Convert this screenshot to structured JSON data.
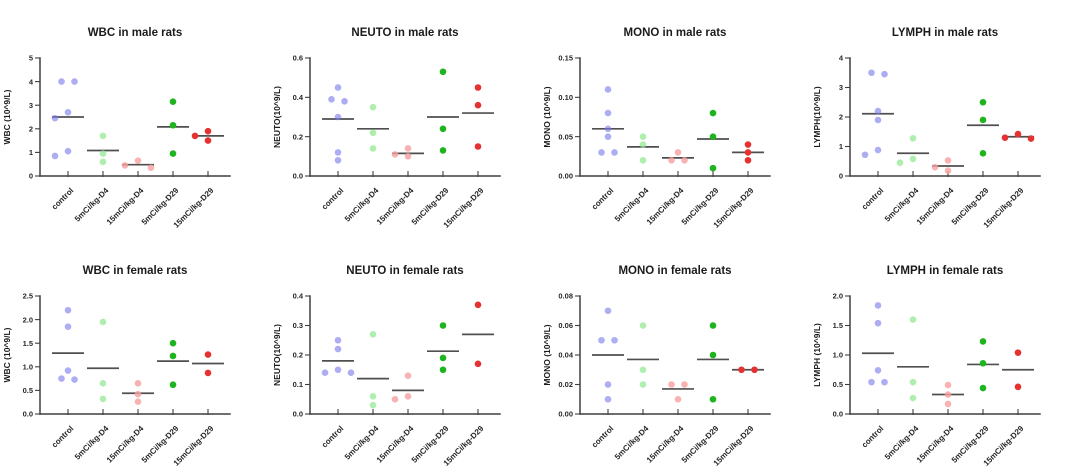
{
  "page": {
    "background": "#ffffff",
    "figure_type": "dot-plot-grid",
    "rows": 2,
    "cols": 4
  },
  "categories": [
    "control",
    "5mCi/kg-D4",
    "15mCi/kg-D4",
    "5mCi/kg-D29",
    "15mCi/kg-D29"
  ],
  "group_styles": [
    {
      "category": "control",
      "color": "#7b7beb",
      "opacity": 0.62
    },
    {
      "category": "5mCi/kg-D4",
      "color": "#90e890",
      "opacity": 0.72
    },
    {
      "category": "15mCi/kg-D4",
      "color": "#f79f9f",
      "opacity": 0.8
    },
    {
      "category": "5mCi/kg-D29",
      "color": "#1eb41e",
      "opacity": 1
    },
    {
      "category": "15mCi/kg-D29",
      "color": "#e63131",
      "opacity": 1
    }
  ],
  "mean_line_color": "#4f4f4f",
  "chart_data": [
    {
      "type": "scatter",
      "title": "WBC in male rats",
      "ylabel": "WBC (10^9/L)",
      "ylim": [
        0,
        5
      ],
      "yticks": [
        0,
        1,
        2,
        3,
        4,
        5
      ],
      "ytick_labels": [
        "0",
        "1",
        "2",
        "3",
        "4",
        "5"
      ],
      "groups": [
        {
          "category": "control",
          "values": [
            4.0,
            4.0,
            2.7,
            2.45,
            1.05,
            0.85
          ],
          "mean": 2.5
        },
        {
          "category": "5mCi/kg-D4",
          "values": [
            1.7,
            0.95,
            0.6
          ],
          "mean": 1.08
        },
        {
          "category": "15mCi/kg-D4",
          "values": [
            0.65,
            0.45,
            0.35
          ],
          "mean": 0.48
        },
        {
          "category": "5mCi/kg-D29",
          "values": [
            3.15,
            2.15,
            0.95
          ],
          "mean": 2.08
        },
        {
          "category": "15mCi/kg-D29",
          "values": [
            1.9,
            1.7,
            1.5
          ],
          "mean": 1.7
        }
      ]
    },
    {
      "type": "scatter",
      "title": "NEUTO in male rats",
      "ylabel": "NEUTO(10^9/L)",
      "ylim": [
        0,
        0.6
      ],
      "yticks": [
        0,
        0.2,
        0.4,
        0.6
      ],
      "ytick_labels": [
        "0.0",
        "0.2",
        "0.4",
        "0.6"
      ],
      "groups": [
        {
          "category": "control",
          "values": [
            0.45,
            0.39,
            0.38,
            0.3,
            0.12,
            0.08
          ],
          "mean": 0.29
        },
        {
          "category": "5mCi/kg-D4",
          "values": [
            0.35,
            0.22,
            0.14
          ],
          "mean": 0.24
        },
        {
          "category": "15mCi/kg-D4",
          "values": [
            0.14,
            0.11,
            0.1
          ],
          "mean": 0.115
        },
        {
          "category": "5mCi/kg-D29",
          "values": [
            0.53,
            0.24,
            0.13
          ],
          "mean": 0.3
        },
        {
          "category": "15mCi/kg-D29",
          "values": [
            0.45,
            0.36,
            0.15
          ],
          "mean": 0.32
        }
      ]
    },
    {
      "type": "scatter",
      "title": "MONO in male rats",
      "ylabel": "MONO (10^9/L)",
      "ylim": [
        0,
        0.15
      ],
      "yticks": [
        0,
        0.05,
        0.1,
        0.15
      ],
      "ytick_labels": [
        "0.00",
        "0.05",
        "0.10",
        "0.15"
      ],
      "groups": [
        {
          "category": "control",
          "values": [
            0.11,
            0.08,
            0.06,
            0.05,
            0.03,
            0.03
          ],
          "mean": 0.06
        },
        {
          "category": "5mCi/kg-D4",
          "values": [
            0.05,
            0.04,
            0.02
          ],
          "mean": 0.037
        },
        {
          "category": "15mCi/kg-D4",
          "values": [
            0.03,
            0.02,
            0.02
          ],
          "mean": 0.023
        },
        {
          "category": "5mCi/kg-D29",
          "values": [
            0.08,
            0.05,
            0.01
          ],
          "mean": 0.047
        },
        {
          "category": "15mCi/kg-D29",
          "values": [
            0.04,
            0.03,
            0.02
          ],
          "mean": 0.03
        }
      ]
    },
    {
      "type": "scatter",
      "title": "LYMPH in male rats",
      "ylabel": "LYMPH(10^9/L)",
      "ylim": [
        0,
        4
      ],
      "yticks": [
        0,
        1,
        2,
        3,
        4
      ],
      "ytick_labels": [
        "0",
        "1",
        "2",
        "3",
        "4"
      ],
      "groups": [
        {
          "category": "control",
          "values": [
            3.5,
            3.45,
            2.2,
            1.9,
            0.88,
            0.72
          ],
          "mean": 2.11
        },
        {
          "category": "5mCi/kg-D4",
          "values": [
            1.28,
            0.58,
            0.45
          ],
          "mean": 0.77
        },
        {
          "category": "15mCi/kg-D4",
          "values": [
            0.53,
            0.3,
            0.18
          ],
          "mean": 0.34
        },
        {
          "category": "5mCi/kg-D29",
          "values": [
            2.5,
            1.9,
            0.77
          ],
          "mean": 1.72
        },
        {
          "category": "15mCi/kg-D29",
          "values": [
            1.42,
            1.3,
            1.27
          ],
          "mean": 1.33
        }
      ]
    },
    {
      "type": "scatter",
      "title": "WBC in female rats",
      "ylabel": "WBC (10^9/L)",
      "ylim": [
        0,
        2.5
      ],
      "yticks": [
        0,
        0.5,
        1.0,
        1.5,
        2.0,
        2.5
      ],
      "ytick_labels": [
        "0.0",
        "0.5",
        "1.0",
        "1.5",
        "2.0",
        "2.5"
      ],
      "groups": [
        {
          "category": "control",
          "values": [
            2.2,
            1.85,
            0.92,
            0.75,
            0.73
          ],
          "mean": 1.29
        },
        {
          "category": "5mCi/kg-D4",
          "values": [
            1.95,
            0.65,
            0.32
          ],
          "mean": 0.97
        },
        {
          "category": "15mCi/kg-D4",
          "values": [
            0.65,
            0.42,
            0.26
          ],
          "mean": 0.44
        },
        {
          "category": "5mCi/kg-D29",
          "values": [
            1.5,
            1.23,
            0.62
          ],
          "mean": 1.12
        },
        {
          "category": "15mCi/kg-D29",
          "values": [
            1.26,
            0.87
          ],
          "mean": 1.07
        }
      ]
    },
    {
      "type": "scatter",
      "title": "NEUTO in female rats",
      "ylabel": "NEUTO(10^9/L)",
      "ylim": [
        0,
        0.4
      ],
      "yticks": [
        0,
        0.1,
        0.2,
        0.3,
        0.4
      ],
      "ytick_labels": [
        "0.0",
        "0.1",
        "0.2",
        "0.3",
        "0.4"
      ],
      "groups": [
        {
          "category": "control",
          "values": [
            0.25,
            0.22,
            0.15,
            0.14,
            0.14
          ],
          "mean": 0.18
        },
        {
          "category": "5mCi/kg-D4",
          "values": [
            0.27,
            0.06,
            0.03
          ],
          "mean": 0.12
        },
        {
          "category": "15mCi/kg-D4",
          "values": [
            0.13,
            0.06,
            0.05
          ],
          "mean": 0.08
        },
        {
          "category": "5mCi/kg-D29",
          "values": [
            0.3,
            0.19,
            0.15
          ],
          "mean": 0.213
        },
        {
          "category": "15mCi/kg-D29",
          "values": [
            0.37,
            0.17
          ],
          "mean": 0.27
        }
      ]
    },
    {
      "type": "scatter",
      "title": "MONO in female rats",
      "ylabel": "MONO (10^9/L)",
      "ylim": [
        0,
        0.08
      ],
      "yticks": [
        0,
        0.02,
        0.04,
        0.06,
        0.08
      ],
      "ytick_labels": [
        "0.00",
        "0.02",
        "0.04",
        "0.06",
        "0.08"
      ],
      "groups": [
        {
          "category": "control",
          "values": [
            0.07,
            0.05,
            0.05,
            0.02,
            0.01
          ],
          "mean": 0.04
        },
        {
          "category": "5mCi/kg-D4",
          "values": [
            0.06,
            0.03,
            0.02
          ],
          "mean": 0.037
        },
        {
          "category": "15mCi/kg-D4",
          "values": [
            0.02,
            0.02,
            0.01
          ],
          "mean": 0.017
        },
        {
          "category": "5mCi/kg-D29",
          "values": [
            0.06,
            0.04,
            0.01
          ],
          "mean": 0.037
        },
        {
          "category": "15mCi/kg-D29",
          "values": [
            0.03,
            0.03
          ],
          "mean": 0.03
        }
      ]
    },
    {
      "type": "scatter",
      "title": "LYMPH in female rats",
      "ylabel": "LYMPH (10^9/L)",
      "ylim": [
        0,
        2.0
      ],
      "yticks": [
        0,
        0.5,
        1.0,
        1.5,
        2.0
      ],
      "ytick_labels": [
        "0.0",
        "0.5",
        "1.0",
        "1.5",
        "2.0"
      ],
      "groups": [
        {
          "category": "control",
          "values": [
            1.84,
            1.54,
            0.74,
            0.54,
            0.54
          ],
          "mean": 1.03
        },
        {
          "category": "5mCi/kg-D4",
          "values": [
            1.6,
            0.54,
            0.27
          ],
          "mean": 0.8
        },
        {
          "category": "15mCi/kg-D4",
          "values": [
            0.49,
            0.33,
            0.17
          ],
          "mean": 0.33
        },
        {
          "category": "5mCi/kg-D29",
          "values": [
            1.23,
            0.86,
            0.44
          ],
          "mean": 0.84
        },
        {
          "category": "15mCi/kg-D29",
          "values": [
            1.04,
            0.46
          ],
          "mean": 0.75
        }
      ]
    }
  ]
}
